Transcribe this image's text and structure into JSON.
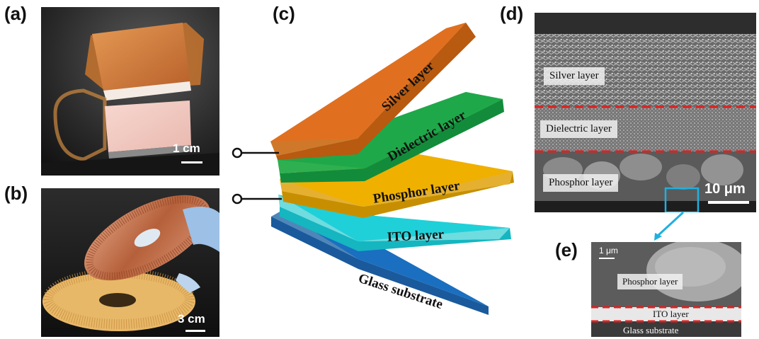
{
  "panels": {
    "a": {
      "label": "(a)",
      "scale": "1 cm"
    },
    "b": {
      "label": "(b)",
      "scale": "3 cm"
    },
    "c": {
      "label": "(c)",
      "layers": [
        {
          "name": "Silver layer",
          "color": "#e07020"
        },
        {
          "name": "Dielectric layer",
          "color": "#1fa84a"
        },
        {
          "name": "Phosphor layer",
          "color": "#f0b000"
        },
        {
          "name": "ITO layer",
          "color": "#20d0d8"
        },
        {
          "name": "Glass substrate",
          "color": "#1a6fc0"
        }
      ]
    },
    "d": {
      "label": "(d)",
      "scale": "10 μm",
      "layers": [
        "Silver layer",
        "Dielectric layer",
        "Phosphor layer"
      ]
    },
    "e": {
      "label": "(e)",
      "scale": "1 μm",
      "layers": [
        "Phosphor layer",
        "ITO layer",
        "Glass substrate"
      ]
    }
  },
  "colors": {
    "boundary_dash": "#e02020",
    "zoom_box": "#20b0e0"
  }
}
